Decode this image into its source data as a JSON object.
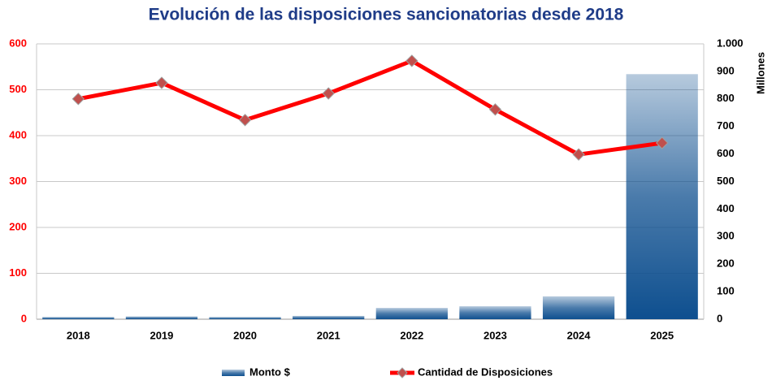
{
  "chart_data": {
    "type": "bar-line",
    "title": "Evolución  de las disposiciones  sancionatorias  desde 2018",
    "categories": [
      "2018",
      "2019",
      "2020",
      "2021",
      "2022",
      "2023",
      "2024",
      "2025"
    ],
    "series": [
      {
        "name": "Monto $",
        "type": "bar",
        "axis": "y2",
        "color": "#0e4f8f",
        "values": [
          8,
          10,
          8,
          12,
          41,
          47,
          83,
          890
        ]
      },
      {
        "name": "Cantidad de Disposiciones",
        "type": "line",
        "color": "#ff0000",
        "marker_color": "#c0504d",
        "values": [
          480,
          515,
          434,
          492,
          563,
          457,
          359,
          384
        ]
      }
    ],
    "ylim": [
      0,
      600
    ],
    "yticks": [
      0,
      100,
      200,
      300,
      400,
      500,
      600
    ],
    "ytick_color": "#ff0000",
    "y2lim": [
      0,
      1000
    ],
    "y2label": "Millones",
    "y2ticks": [
      0,
      100,
      200,
      300,
      400,
      500,
      600,
      700,
      800,
      900,
      {
        "value": 1000,
        "label": "1.000"
      }
    ],
    "grid": true
  }
}
